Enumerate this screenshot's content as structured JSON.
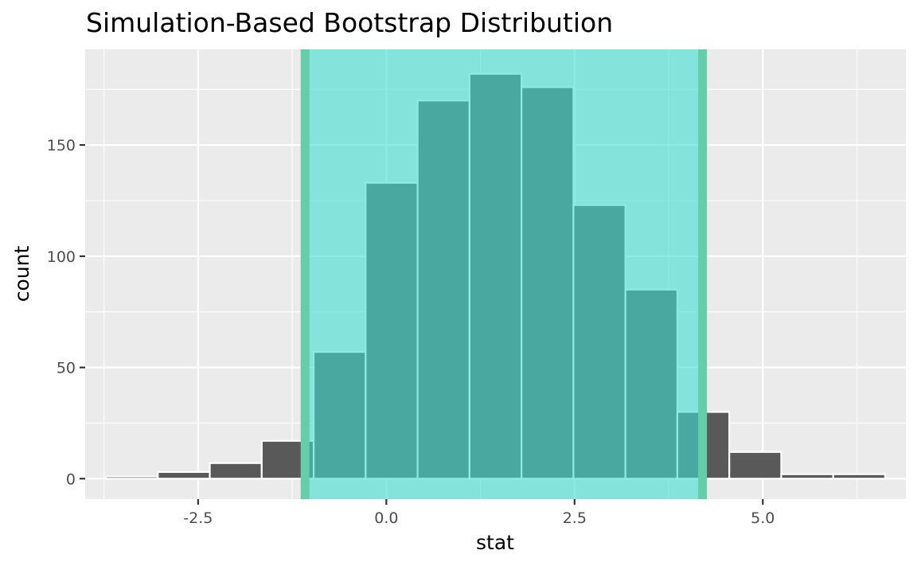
{
  "chart_data": {
    "type": "bar",
    "title": "Simulation-Based Bootstrap Distribution",
    "xlabel": "stat",
    "ylabel": "count",
    "xlim": [
      -4.0,
      6.9
    ],
    "ylim": [
      -9.2,
      193
    ],
    "x_ticks": [
      -2.5,
      0.0,
      2.5,
      5.0
    ],
    "x_tick_labels": [
      "-2.5",
      "0.0",
      "2.5",
      "5.0"
    ],
    "y_ticks": [
      0,
      50,
      100,
      150
    ],
    "y_tick_labels": [
      "0",
      "50",
      "100",
      "150"
    ],
    "grid": true,
    "bin_width": 0.69,
    "bins": [
      {
        "x": -3.38,
        "count": 1
      },
      {
        "x": -2.69,
        "count": 3
      },
      {
        "x": -2.0,
        "count": 7
      },
      {
        "x": -1.31,
        "count": 17
      },
      {
        "x": -0.62,
        "count": 57
      },
      {
        "x": 0.07,
        "count": 133
      },
      {
        "x": 0.76,
        "count": 170
      },
      {
        "x": 1.45,
        "count": 182
      },
      {
        "x": 2.14,
        "count": 176
      },
      {
        "x": 2.83,
        "count": 123
      },
      {
        "x": 3.52,
        "count": 85
      },
      {
        "x": 4.21,
        "count": 30
      },
      {
        "x": 4.9,
        "count": 12
      },
      {
        "x": 5.59,
        "count": 2
      },
      {
        "x": 6.28,
        "count": 2
      }
    ],
    "ci": {
      "lower": -1.08,
      "upper": 4.2
    },
    "colors": {
      "panel": "#ebebeb",
      "grid": "#ffffff",
      "bar_fill": "#595959",
      "bar_outline": "#ffffff",
      "ci_shade": "#40e0d0",
      "ci_line": "#66cdaa"
    }
  }
}
